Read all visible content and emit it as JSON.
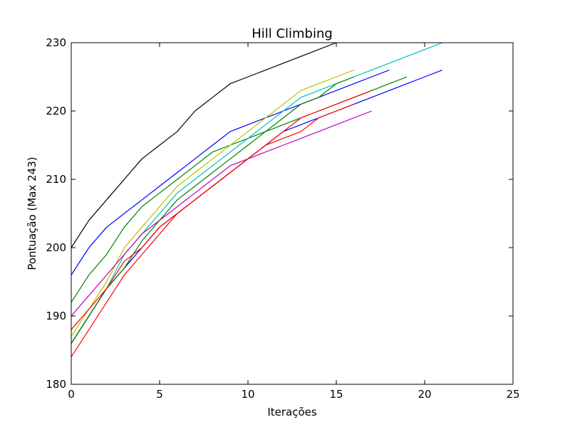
{
  "chart_data": {
    "type": "line",
    "title": "Hill Climbing",
    "xlabel": "Iterações",
    "ylabel": "Pontuação (Max 243)",
    "xlim": [
      0,
      25
    ],
    "ylim": [
      180,
      230
    ],
    "xticks": [
      0,
      5,
      10,
      15,
      20,
      25
    ],
    "yticks": [
      180,
      190,
      200,
      210,
      220,
      230
    ],
    "grid": false,
    "legend": "none",
    "series": [
      {
        "color": "#000000",
        "points": [
          [
            0,
            200
          ],
          [
            1,
            204
          ],
          [
            2,
            207
          ],
          [
            3,
            210
          ],
          [
            4,
            213
          ],
          [
            5,
            215
          ],
          [
            6,
            217
          ],
          [
            7,
            220
          ],
          [
            8,
            222
          ],
          [
            9,
            224
          ],
          [
            10,
            225
          ],
          [
            11,
            226
          ],
          [
            12,
            227
          ],
          [
            13,
            228
          ],
          [
            14,
            229
          ],
          [
            15,
            230
          ]
        ]
      },
      {
        "color": "#0000ff",
        "points": [
          [
            0,
            196
          ],
          [
            1,
            200
          ],
          [
            2,
            203
          ],
          [
            3,
            205
          ],
          [
            4,
            207
          ],
          [
            5,
            209
          ],
          [
            6,
            211
          ],
          [
            7,
            213
          ],
          [
            8,
            215
          ],
          [
            9,
            217
          ],
          [
            10,
            218
          ],
          [
            11,
            219
          ],
          [
            12,
            220
          ],
          [
            13,
            221
          ],
          [
            14,
            222
          ],
          [
            15,
            223
          ],
          [
            16,
            224
          ],
          [
            17,
            225
          ],
          [
            18,
            226
          ]
        ]
      },
      {
        "color": "#008000",
        "points": [
          [
            0,
            192
          ],
          [
            1,
            196
          ],
          [
            2,
            199
          ],
          [
            3,
            203
          ],
          [
            4,
            206
          ],
          [
            5,
            208
          ],
          [
            6,
            210
          ],
          [
            7,
            212
          ],
          [
            8,
            214
          ],
          [
            9,
            215
          ],
          [
            10,
            216
          ],
          [
            11,
            217
          ],
          [
            12,
            218
          ],
          [
            13,
            219
          ],
          [
            14,
            220
          ],
          [
            15,
            221
          ],
          [
            16,
            222
          ],
          [
            17,
            223
          ],
          [
            18,
            224
          ],
          [
            19,
            225
          ]
        ]
      },
      {
        "color": "#bfbf00",
        "points": [
          [
            0,
            187
          ],
          [
            1,
            191
          ],
          [
            2,
            195
          ],
          [
            3,
            200
          ],
          [
            4,
            203
          ],
          [
            5,
            206
          ],
          [
            6,
            209
          ],
          [
            7,
            211
          ],
          [
            8,
            213
          ],
          [
            9,
            215
          ],
          [
            10,
            217
          ],
          [
            11,
            219
          ],
          [
            12,
            221
          ],
          [
            13,
            223
          ],
          [
            14,
            224
          ],
          [
            15,
            225
          ],
          [
            16,
            226
          ]
        ]
      },
      {
        "color": "#00bfbf",
        "points": [
          [
            0,
            186
          ],
          [
            1,
            190
          ],
          [
            2,
            194
          ],
          [
            3,
            199
          ],
          [
            4,
            202
          ],
          [
            5,
            205
          ],
          [
            6,
            208
          ],
          [
            7,
            210
          ],
          [
            8,
            212
          ],
          [
            9,
            214
          ],
          [
            10,
            216
          ],
          [
            11,
            218
          ],
          [
            12,
            220
          ],
          [
            13,
            222
          ],
          [
            14,
            223
          ],
          [
            15,
            224
          ],
          [
            16,
            225
          ],
          [
            17,
            226
          ],
          [
            18,
            227
          ],
          [
            19,
            228
          ],
          [
            20,
            229
          ],
          [
            21,
            230
          ]
        ]
      },
      {
        "color": "#bf00bf",
        "points": [
          [
            0,
            190
          ],
          [
            1,
            193
          ],
          [
            2,
            196
          ],
          [
            3,
            199
          ],
          [
            4,
            202
          ],
          [
            5,
            204
          ],
          [
            6,
            206
          ],
          [
            7,
            208
          ],
          [
            8,
            210
          ],
          [
            9,
            212
          ],
          [
            10,
            213
          ],
          [
            11,
            214
          ],
          [
            12,
            215
          ],
          [
            13,
            216
          ],
          [
            14,
            217
          ],
          [
            15,
            218
          ],
          [
            16,
            219
          ],
          [
            17,
            220
          ]
        ]
      },
      {
        "color": "#0000ff",
        "points": [
          [
            0,
            186
          ],
          [
            1,
            190
          ],
          [
            2,
            194
          ],
          [
            3,
            197
          ],
          [
            4,
            200
          ],
          [
            5,
            203
          ],
          [
            6,
            205
          ],
          [
            7,
            207
          ],
          [
            8,
            209
          ],
          [
            9,
            211
          ],
          [
            10,
            213
          ],
          [
            11,
            215
          ],
          [
            12,
            217
          ],
          [
            13,
            218
          ],
          [
            14,
            219
          ],
          [
            15,
            220
          ],
          [
            16,
            221
          ],
          [
            17,
            222
          ],
          [
            18,
            223
          ],
          [
            19,
            224
          ],
          [
            20,
            225
          ],
          [
            21,
            226
          ]
        ]
      },
      {
        "color": "#008000",
        "points": [
          [
            0,
            186
          ],
          [
            1,
            190
          ],
          [
            2,
            194
          ],
          [
            3,
            197
          ],
          [
            4,
            201
          ],
          [
            5,
            204
          ],
          [
            6,
            207
          ],
          [
            7,
            209
          ],
          [
            8,
            211
          ],
          [
            9,
            213
          ],
          [
            10,
            215
          ],
          [
            11,
            217
          ],
          [
            12,
            219
          ],
          [
            13,
            221
          ],
          [
            14,
            222
          ],
          [
            15,
            224
          ],
          [
            16,
            225
          ]
        ]
      },
      {
        "color": "#ff0000",
        "points": [
          [
            0,
            184
          ],
          [
            1,
            188
          ],
          [
            2,
            192
          ],
          [
            3,
            196
          ],
          [
            4,
            199
          ],
          [
            5,
            202
          ],
          [
            6,
            205
          ],
          [
            7,
            207
          ],
          [
            8,
            209
          ],
          [
            9,
            211
          ],
          [
            10,
            213
          ],
          [
            11,
            215
          ],
          [
            12,
            216
          ],
          [
            13,
            217
          ],
          [
            14,
            219
          ],
          [
            15,
            220
          ],
          [
            16,
            221
          ]
        ]
      },
      {
        "color": "#ff0000",
        "points": [
          [
            0,
            188
          ],
          [
            1,
            191
          ],
          [
            2,
            194
          ],
          [
            3,
            198
          ],
          [
            4,
            200
          ],
          [
            5,
            203
          ],
          [
            6,
            205
          ],
          [
            7,
            207
          ],
          [
            8,
            209
          ],
          [
            9,
            211
          ],
          [
            10,
            213
          ],
          [
            11,
            215
          ],
          [
            12,
            217
          ],
          [
            13,
            219
          ],
          [
            14,
            220
          ],
          [
            15,
            221
          ],
          [
            16,
            222
          ],
          [
            17,
            223
          ]
        ]
      }
    ]
  }
}
